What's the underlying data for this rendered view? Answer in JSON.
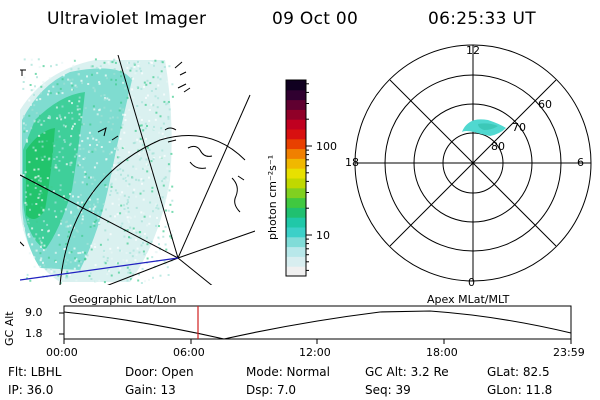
{
  "header": {
    "title": "Ultraviolet Imager",
    "date": "09 Oct 00",
    "time": "06:25:33 UT"
  },
  "colorbar": {
    "label": "photon cm⁻²s⁻¹",
    "ticks": [
      "100",
      "10"
    ],
    "scale": "log",
    "colors": [
      "#f0f0f0",
      "#d8eef0",
      "#b8e8ea",
      "#80dcd8",
      "#3cd0c8",
      "#20c8a8",
      "#20c070",
      "#40c840",
      "#80d020",
      "#c0d800",
      "#e8e000",
      "#f0b800",
      "#f08000",
      "#e84000",
      "#d81010",
      "#c00020",
      "#900028",
      "#600030",
      "#300030",
      "#100020"
    ]
  },
  "geo_panel": {
    "label": "Geographic Lat/Lon",
    "colors": {
      "aurora_bright": "#20c878",
      "aurora_mid": "#60d8c0",
      "aurora_faint": "#c8ece8",
      "line_blue": "#2020c0"
    }
  },
  "polar_panel": {
    "label": "Apex MLat/MLT",
    "mlt_labels": [
      "12",
      "18",
      "6",
      "0"
    ],
    "lat_labels": [
      "60",
      "70",
      "80"
    ],
    "aurora_color": "#50d8d0"
  },
  "timeline": {
    "ylabel": "GC Alt",
    "yticks": [
      "9.0",
      "1.8"
    ],
    "xticks": [
      "00:00",
      "06:00",
      "12:00",
      "18:00",
      "23:59"
    ],
    "current_time_color": "#d02020"
  },
  "info": {
    "filter": "Flt: LBHL",
    "door": "Door: Open",
    "mode": "Mode: Normal",
    "gc_alt": "GC Alt: 3.2 Re",
    "glat": "GLat:  82.5",
    "ip": "IP: 36.0",
    "gain": "Gain: 13",
    "dsp": "Dsp:    7.0",
    "seq": "Seq: 39",
    "glon": "GLon:  11.8"
  }
}
